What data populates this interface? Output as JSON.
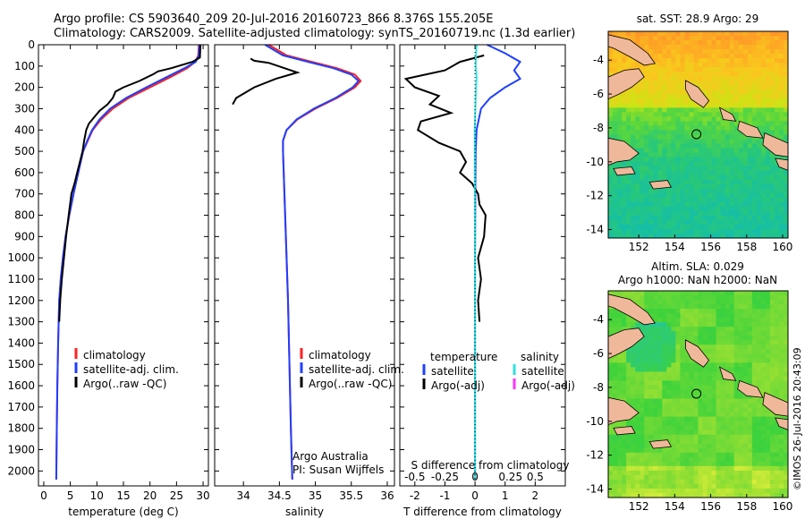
{
  "header": {
    "line1": "Argo profile: CS 5903640_209 20-Jul-2016 20160723_866 8.376S 155.205E",
    "line2": "Climatology: CARS2009. Satellite-adjusted climatology: synTS_20160719.nc (1.3d earlier)"
  },
  "credit": "©IMOS 26-Jul-2016 20:43:09",
  "colors": {
    "climatology": "#ff2020",
    "satellite": "#1f3fff",
    "argo": "#000000",
    "temp_satellite": "#1f3fff",
    "sal_satellite": "#30e0e0",
    "sal_argo": "#ff30ff"
  },
  "chart_data": [
    {
      "id": "temperature",
      "type": "line",
      "xlabel": "temperature (deg C)",
      "xlim": [
        -1,
        31
      ],
      "xticks": [
        0,
        5,
        10,
        15,
        20,
        25,
        30
      ],
      "ylim": [
        2070,
        0
      ],
      "yticks": [
        0,
        100,
        200,
        300,
        400,
        500,
        600,
        700,
        800,
        900,
        1000,
        1100,
        1200,
        1300,
        1400,
        1500,
        1600,
        1700,
        1800,
        1900,
        2000
      ],
      "legend": [
        "climatology",
        "satellite-adj. clim.",
        "Argo(..raw -QC)"
      ],
      "series": [
        {
          "name": "climatology",
          "color_key": "climatology",
          "x": [
            29.2,
            29.1,
            28.5,
            27,
            24,
            20,
            16,
            13,
            10.8,
            9.2,
            8.3,
            7.4,
            6.5,
            5.6,
            4.8,
            4.1,
            3.6,
            3.2,
            2.9,
            2.7,
            2.55,
            2.45,
            2.35
          ],
          "y": [
            0,
            50,
            80,
            110,
            150,
            200,
            250,
            300,
            350,
            400,
            450,
            500,
            600,
            700,
            800,
            900,
            1000,
            1100,
            1200,
            1400,
            1600,
            1800,
            2040
          ]
        },
        {
          "name": "satellite-adj. clim.",
          "color_key": "satellite",
          "x": [
            29.3,
            29.2,
            28.6,
            26.5,
            23.3,
            19.3,
            15.5,
            12.5,
            10.5,
            9.1,
            8.2,
            7.4,
            6.5,
            5.6,
            4.8,
            4.1,
            3.6,
            3.2,
            2.9,
            2.7,
            2.55,
            2.45,
            2.35
          ],
          "y": [
            0,
            50,
            80,
            110,
            150,
            200,
            250,
            300,
            350,
            400,
            450,
            500,
            600,
            700,
            800,
            900,
            1000,
            1100,
            1200,
            1400,
            1600,
            1800,
            2040
          ]
        },
        {
          "name": "Argo(..raw -QC)",
          "color_key": "argo",
          "x": [
            29.5,
            29.4,
            28,
            24,
            21.5,
            20.5,
            18,
            15,
            13.5,
            13,
            12,
            10.5,
            9.5,
            8.5,
            8,
            7.6,
            7.3,
            6.8,
            6.3,
            5.8,
            5.2,
            4.7,
            4.2,
            3.8,
            3.4,
            3.1,
            2.9
          ],
          "y": [
            0,
            60,
            80,
            110,
            125,
            140,
            170,
            200,
            220,
            250,
            280,
            310,
            340,
            370,
            400,
            450,
            500,
            550,
            600,
            650,
            700,
            800,
            900,
            1000,
            1100,
            1200,
            1300
          ]
        }
      ]
    },
    {
      "id": "salinity",
      "type": "line",
      "xlabel": "salinity",
      "xlim": [
        33.6,
        36.1
      ],
      "xticks": [
        34,
        34.5,
        35,
        35.5,
        36
      ],
      "ylim": [
        2070,
        0
      ],
      "legend": [
        "climatology",
        "satellite-adj. clim.",
        "Argo(..raw -QC)"
      ],
      "annotation": [
        "Argo Australia",
        "PI: Susan Wijffels"
      ],
      "series": [
        {
          "name": "climatology",
          "color_key": "climatology",
          "x": [
            34.35,
            34.6,
            34.95,
            35.3,
            35.55,
            35.63,
            35.55,
            35.3,
            35.0,
            34.75,
            34.6,
            34.55,
            34.55,
            34.56,
            34.58,
            34.6,
            34.62,
            34.64,
            34.66,
            34.68
          ],
          "y": [
            0,
            50,
            80,
            110,
            140,
            170,
            200,
            250,
            300,
            350,
            400,
            450,
            500,
            600,
            800,
            1000,
            1200,
            1500,
            1800,
            2040
          ]
        },
        {
          "name": "satellite-adj. clim.",
          "color_key": "satellite",
          "x": [
            34.3,
            34.55,
            34.9,
            35.25,
            35.5,
            35.6,
            35.52,
            35.28,
            34.98,
            34.74,
            34.6,
            34.55,
            34.55,
            34.56,
            34.58,
            34.6,
            34.62,
            34.64,
            34.66,
            34.68
          ],
          "y": [
            0,
            50,
            80,
            110,
            140,
            170,
            200,
            250,
            300,
            350,
            400,
            450,
            500,
            600,
            800,
            1000,
            1200,
            1500,
            1800,
            2040
          ]
        },
        {
          "name": "Argo(..raw -QC)",
          "color_key": "argo",
          "x": [
            34.1,
            34.15,
            34.35,
            34.75,
            34.45,
            34.15,
            33.9,
            33.85
          ],
          "y": [
            65,
            75,
            85,
            130,
            160,
            200,
            250,
            280
          ]
        }
      ]
    },
    {
      "id": "difference",
      "type": "line",
      "xlabel": "T difference from climatology",
      "xlabel_top": "S difference from climatology",
      "xlim": [
        -2.5,
        3
      ],
      "xticks": [
        -2,
        -1,
        0,
        1,
        2
      ],
      "xticks_top": [
        -0.5,
        -0.25,
        0,
        0.25,
        0.5
      ],
      "xticks_top_labels": [
        "-0.5",
        "-0.25",
        "0",
        "0.25",
        "0.5"
      ],
      "ylim": [
        2070,
        0
      ],
      "legend_temperature": [
        "temperature",
        "satellite",
        "Argo(-adj)"
      ],
      "legend_salinity": [
        "salinity",
        "satellite",
        "Argo(-adj)"
      ],
      "series": [
        {
          "name": "T satellite",
          "color_key": "temp_satellite",
          "x": [
            0.4,
            1.0,
            1.5,
            1.3,
            1.5,
            1.0,
            0.5,
            0.2,
            0.05,
            0.02,
            0.01,
            0,
            0
          ],
          "y": [
            0,
            40,
            80,
            120,
            160,
            200,
            250,
            300,
            400,
            500,
            700,
            1000,
            2040
          ]
        },
        {
          "name": "T Argo(-adj)",
          "color_key": "argo",
          "x": [
            0.3,
            -0.5,
            -1.0,
            -2.3,
            -2.0,
            -1.2,
            -1.5,
            -0.8,
            -1.8,
            -1.9,
            -1.2,
            -0.5,
            -0.3,
            -0.5,
            -0.1,
            0.1,
            0.15,
            0.35,
            0.3,
            0.1,
            0.2,
            0.1,
            0.15
          ],
          "y": [
            50,
            80,
            120,
            160,
            200,
            240,
            280,
            320,
            360,
            400,
            460,
            500,
            550,
            600,
            650,
            700,
            750,
            800,
            900,
            1000,
            1100,
            1200,
            1300
          ]
        },
        {
          "name": "S satellite",
          "color_key": "sal_satellite",
          "x": [
            0.05,
            0.03,
            0.02,
            0.05,
            0.02,
            -0.01,
            -0.01,
            0,
            0
          ],
          "y": [
            0,
            60,
            100,
            150,
            250,
            400,
            600,
            1000,
            2040
          ]
        }
      ]
    },
    {
      "id": "sst_map",
      "type": "heatmap",
      "title": "sat. SST: 28.9 Argo: 29",
      "xlim": [
        150.3,
        160.3
      ],
      "ylim": [
        -14.5,
        -2.3
      ],
      "xticks": [
        152,
        154,
        156,
        158,
        160
      ],
      "yticks": [
        -4,
        -6,
        -8,
        -10,
        -12,
        -14
      ],
      "marker": {
        "lon": 155.205,
        "lat": -8.376
      }
    },
    {
      "id": "sla_map",
      "type": "heatmap",
      "title_line1": "Altim. SLA: 0.029",
      "title_line2": "Argo h1000: NaN h2000: NaN",
      "xlim": [
        150.3,
        160.3
      ],
      "ylim": [
        -14.5,
        -2.3
      ],
      "xticks": [
        152,
        154,
        156,
        158,
        160
      ],
      "yticks": [
        -4,
        -6,
        -8,
        -10,
        -12,
        -14
      ],
      "marker": {
        "lon": 155.205,
        "lat": -8.376
      }
    }
  ]
}
